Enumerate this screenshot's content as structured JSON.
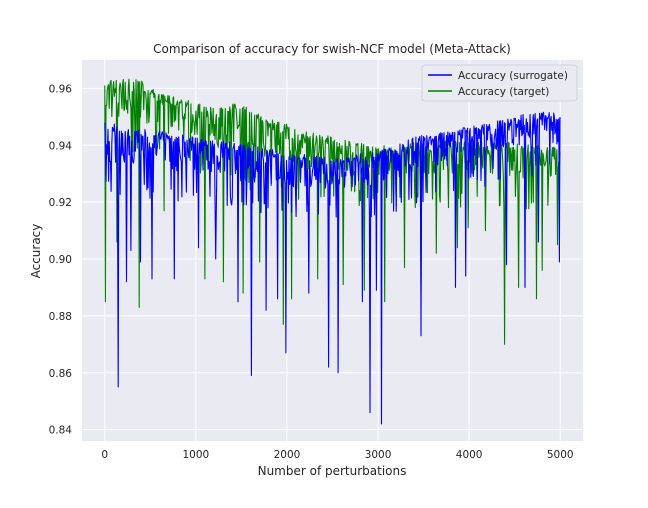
{
  "chart_data": {
    "type": "line",
    "title": "Comparison of accuracy for swish-NCF model (Meta-Attack)",
    "xlabel": "Number of perturbations",
    "ylabel": "Accuracy",
    "xlim": [
      -250,
      5250
    ],
    "ylim": [
      0.836,
      0.97
    ],
    "xticks": [
      0,
      1000,
      2000,
      3000,
      4000,
      5000
    ],
    "xtick_labels": [
      "0",
      "1000",
      "2000",
      "3000",
      "4000",
      "5000"
    ],
    "yticks": [
      0.84,
      0.86,
      0.88,
      0.9,
      0.92,
      0.94,
      0.96
    ],
    "ytick_labels": [
      "0.84",
      "0.86",
      "0.88",
      "0.90",
      "0.92",
      "0.94",
      "0.96"
    ],
    "grid": true,
    "legend_position": "upper-right",
    "colors": {
      "background": "#eaeaf2",
      "grid": "#ffffff",
      "surrogate": "#0000ff",
      "target": "#008000"
    },
    "series": [
      {
        "name": "Accuracy (surrogate)",
        "color": "#0000ff",
        "upper_envelope": {
          "x": [
            0,
            200,
            400,
            600,
            800,
            1000,
            1200,
            1400,
            1600,
            1800,
            2000,
            2200,
            2400,
            2600,
            2800,
            3000,
            3200,
            3400,
            3600,
            3800,
            4000,
            4200,
            4400,
            4600,
            4800,
            5000
          ],
          "y": [
            0.948,
            0.947,
            0.946,
            0.945,
            0.944,
            0.943,
            0.942,
            0.941,
            0.94,
            0.939,
            0.938,
            0.937,
            0.936,
            0.936,
            0.937,
            0.938,
            0.94,
            0.943,
            0.944,
            0.945,
            0.947,
            0.948,
            0.949,
            0.951,
            0.952,
            0.951
          ]
        },
        "typical_floor": {
          "x": [
            0,
            500,
            1000,
            1500,
            2000,
            2500,
            3000,
            3500,
            4000,
            4500,
            5000
          ],
          "y": [
            0.928,
            0.926,
            0.924,
            0.922,
            0.92,
            0.92,
            0.921,
            0.925,
            0.93,
            0.934,
            0.936
          ]
        },
        "dips": {
          "x": [
            150,
            240,
            290,
            390,
            520,
            760,
            1030,
            1220,
            1460,
            1610,
            1770,
            1900,
            1990,
            2240,
            2460,
            2560,
            2830,
            2910,
            2980,
            3040,
            3470,
            3850,
            3960,
            4410,
            4610,
            4760,
            4990
          ],
          "y": [
            0.855,
            0.892,
            0.903,
            0.899,
            0.893,
            0.893,
            0.904,
            0.9,
            0.885,
            0.859,
            0.882,
            0.886,
            0.867,
            0.888,
            0.862,
            0.86,
            0.885,
            0.846,
            0.889,
            0.842,
            0.873,
            0.89,
            0.894,
            0.898,
            0.89,
            0.906,
            0.899
          ]
        }
      },
      {
        "name": "Accuracy (target)",
        "color": "#008000",
        "upper_envelope": {
          "x": [
            0,
            200,
            400,
            600,
            800,
            1000,
            1200,
            1400,
            1600,
            1800,
            2000,
            2200,
            2400,
            2600,
            2800,
            3000,
            3200,
            3400,
            3600,
            3800,
            4000,
            4200,
            4400,
            4600,
            4800,
            5000
          ],
          "y": [
            0.963,
            0.964,
            0.963,
            0.958,
            0.957,
            0.955,
            0.953,
            0.955,
            0.953,
            0.95,
            0.948,
            0.945,
            0.944,
            0.942,
            0.941,
            0.94,
            0.94,
            0.941,
            0.941,
            0.942,
            0.941,
            0.941,
            0.941,
            0.941,
            0.94,
            0.939
          ]
        },
        "typical_floor": {
          "x": [
            0,
            500,
            1000,
            1500,
            2000,
            2500,
            3000,
            3500,
            4000,
            4500,
            5000
          ],
          "y": [
            0.945,
            0.94,
            0.935,
            0.931,
            0.927,
            0.925,
            0.924,
            0.924,
            0.924,
            0.923,
            0.923
          ]
        },
        "dips": {
          "x": [
            10,
            130,
            380,
            650,
            1100,
            1300,
            1520,
            1700,
            1960,
            2050,
            2340,
            2620,
            2850,
            3070,
            3290,
            3470,
            3640,
            3870,
            3990,
            4180,
            4390,
            4540,
            4740,
            4800,
            4970
          ],
          "y": [
            0.885,
            0.906,
            0.883,
            0.917,
            0.893,
            0.892,
            0.888,
            0.899,
            0.877,
            0.886,
            0.893,
            0.891,
            0.889,
            0.885,
            0.897,
            0.889,
            0.902,
            0.904,
            0.911,
            0.91,
            0.87,
            0.89,
            0.886,
            0.896,
            0.905
          ]
        }
      }
    ]
  }
}
